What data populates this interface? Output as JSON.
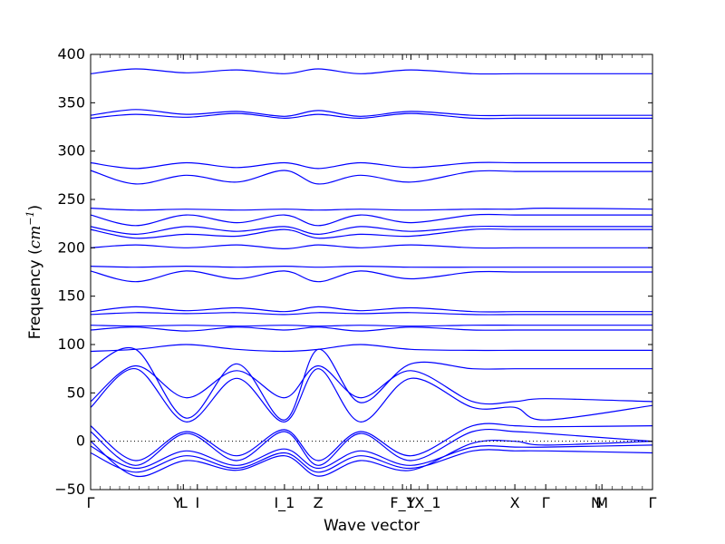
{
  "chart_data": {
    "type": "line",
    "title": "",
    "xlabel": "Wave vector",
    "ylabel_main": "Frequency (",
    "ylabel_unit": "cm",
    "ylabel_exp": "−1",
    "ylabel_close": ")",
    "ylim": [
      -50,
      400
    ],
    "yticks": [
      -50,
      0,
      50,
      100,
      150,
      200,
      250,
      300,
      350,
      400
    ],
    "grid": false,
    "zero_line": true,
    "band_color": "#0000ff",
    "kpoints": [
      {
        "label": "Γ",
        "x": 0
      },
      {
        "label": "Y",
        "x": 0.155
      },
      {
        "label": "L",
        "x": 0.165
      },
      {
        "label": "I",
        "x": 0.19
      },
      {
        "label": "I_1",
        "x": 0.345
      },
      {
        "label": "Z",
        "x": 0.405
      },
      {
        "label": "F_1",
        "x": 0.555
      },
      {
        "label": "Y",
        "x": 0.57
      },
      {
        "label": "X_1",
        "x": 0.6
      },
      {
        "label": "X",
        "x": 0.755
      },
      {
        "label": "Γ",
        "x": 0.81
      },
      {
        "label": "N",
        "x": 0.9
      },
      {
        "label": "M",
        "x": 0.91
      },
      {
        "label": "Γ",
        "x": 1.0
      }
    ],
    "bands": [
      {
        "name": "b1",
        "values": [
          380,
          385,
          381,
          384,
          380,
          385,
          380,
          384,
          380,
          380,
          380,
          380
        ]
      },
      {
        "name": "b2",
        "values": [
          337,
          343,
          338,
          341,
          336,
          342,
          336,
          341,
          337,
          337,
          337,
          337
        ]
      },
      {
        "name": "b3",
        "values": [
          334,
          338,
          335,
          339,
          334,
          338,
          334,
          339,
          334,
          334,
          334,
          334
        ]
      },
      {
        "name": "b4",
        "values": [
          288,
          282,
          288,
          283,
          288,
          282,
          288,
          283,
          288,
          288,
          288,
          288
        ]
      },
      {
        "name": "b5",
        "values": [
          280,
          266,
          275,
          268,
          280,
          266,
          275,
          268,
          279,
          279,
          279,
          279
        ]
      },
      {
        "name": "b6",
        "values": [
          241,
          239,
          240,
          239,
          240,
          239,
          240,
          239,
          240,
          240,
          241,
          240
        ]
      },
      {
        "name": "b7",
        "values": [
          234,
          223,
          234,
          226,
          234,
          223,
          234,
          226,
          234,
          234,
          234,
          234
        ]
      },
      {
        "name": "b8",
        "values": [
          222,
          214,
          222,
          217,
          222,
          214,
          222,
          217,
          222,
          222,
          222,
          222
        ]
      },
      {
        "name": "b9",
        "values": [
          219,
          210,
          214,
          212,
          219,
          210,
          214,
          212,
          219,
          219,
          219,
          219
        ]
      },
      {
        "name": "b10",
        "values": [
          200,
          203,
          200,
          203,
          199,
          203,
          200,
          203,
          200,
          200,
          200,
          200
        ]
      },
      {
        "name": "b11",
        "values": [
          181,
          180,
          181,
          180,
          181,
          180,
          181,
          180,
          180,
          180,
          180,
          180
        ]
      },
      {
        "name": "b12",
        "values": [
          176,
          165,
          176,
          168,
          176,
          165,
          176,
          168,
          175,
          175,
          175,
          175
        ]
      },
      {
        "name": "b13",
        "values": [
          134,
          139,
          135,
          138,
          134,
          139,
          135,
          138,
          134,
          134,
          134,
          134
        ]
      },
      {
        "name": "b14",
        "values": [
          131,
          133,
          132,
          133,
          131,
          133,
          132,
          133,
          131,
          131,
          131,
          131
        ]
      },
      {
        "name": "b15",
        "values": [
          120,
          119,
          120,
          119,
          120,
          119,
          120,
          119,
          120,
          120,
          120,
          120
        ]
      },
      {
        "name": "b16",
        "values": [
          115,
          118,
          114,
          118,
          115,
          118,
          114,
          118,
          115,
          115,
          115,
          115
        ]
      },
      {
        "name": "b17",
        "values": [
          93,
          95,
          100,
          95,
          93,
          95,
          100,
          95,
          94,
          94,
          94,
          94
        ]
      },
      {
        "name": "b18",
        "values": [
          75,
          95,
          24,
          80,
          22,
          95,
          40,
          80,
          75,
          75,
          75,
          75
        ]
      },
      {
        "name": "b19",
        "values": [
          41,
          78,
          45,
          73,
          45,
          78,
          45,
          73,
          41,
          41,
          44,
          41
        ]
      },
      {
        "name": "b20",
        "values": [
          35,
          75,
          20,
          65,
          20,
          75,
          20,
          65,
          35,
          35,
          22,
          37
        ]
      },
      {
        "name": "b21",
        "values": [
          16,
          -20,
          10,
          -15,
          12,
          -20,
          10,
          -15,
          16,
          16,
          15,
          16
        ]
      },
      {
        "name": "b22",
        "values": [
          10,
          -25,
          8,
          -20,
          10,
          -25,
          8,
          -20,
          10,
          10,
          8,
          0
        ]
      },
      {
        "name": "b23",
        "values": [
          -5,
          -28,
          -10,
          -25,
          -8,
          -28,
          -10,
          -25,
          -6,
          -6,
          -6,
          -4
        ]
      },
      {
        "name": "b24",
        "values": [
          -12,
          -32,
          -15,
          -28,
          -12,
          -32,
          -15,
          -28,
          -10,
          -10,
          -10,
          -12
        ]
      },
      {
        "name": "b25",
        "values": [
          0,
          -36,
          -20,
          -30,
          -15,
          -36,
          -20,
          -30,
          -2,
          0,
          -4,
          0
        ]
      }
    ]
  }
}
